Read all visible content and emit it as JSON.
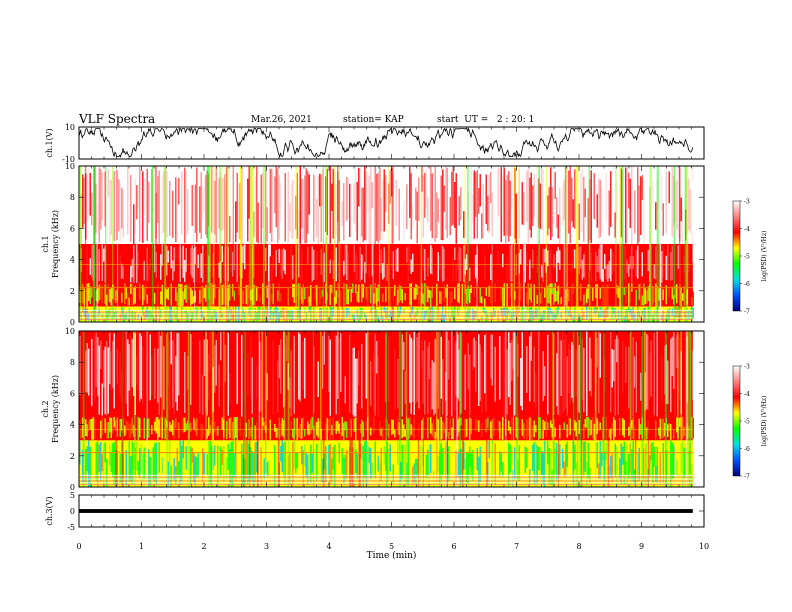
{
  "header": {
    "title": "VLF Spectra",
    "date": "Mar.26, 2021",
    "station": "station= KAP",
    "start": "start  UT =   2 : 20: 1"
  },
  "chart_data": {
    "type": "heatmap",
    "panels": [
      {
        "kind": "waveform",
        "ylabel": "ch.1(V)",
        "yticks": [
          "10",
          "-10"
        ],
        "ylim": [
          -10,
          10
        ]
      },
      {
        "kind": "spectrogram",
        "ylabel": "ch.1\nFrequency (kHz)",
        "yticks": [
          "0",
          "2",
          "4",
          "6",
          "8",
          "10"
        ],
        "ylim": [
          0,
          10
        ],
        "bands": [
          {
            "from": 0,
            "to": 1.0,
            "level": "low"
          },
          {
            "from": 1.0,
            "to": 2.5,
            "level": "mid"
          },
          {
            "from": 2.5,
            "to": 5.0,
            "level": "high"
          },
          {
            "from": 5.0,
            "to": 10.0,
            "level": "highest"
          }
        ]
      },
      {
        "kind": "spectrogram",
        "ylabel": "ch.2\nFrequency (kHz)",
        "yticks": [
          "0",
          "2",
          "4",
          "6",
          "8",
          "10"
        ],
        "ylim": [
          0,
          10
        ],
        "bands": [
          {
            "from": 0,
            "to": 3.0,
            "level": "low"
          },
          {
            "from": 3.0,
            "to": 4.5,
            "level": "mid"
          },
          {
            "from": 4.5,
            "to": 10.0,
            "level": "high"
          }
        ]
      },
      {
        "kind": "flat",
        "ylabel": "ch.3(V)",
        "yticks": [
          "5",
          "0",
          "-5"
        ],
        "ylim": [
          -5,
          5
        ]
      }
    ],
    "xaxis": {
      "label": "Time (min)",
      "ticks": [
        "0",
        "1",
        "2",
        "3",
        "4",
        "5",
        "6",
        "7",
        "8",
        "9",
        "10"
      ],
      "xlim": [
        0,
        10
      ],
      "data_end": 9.82
    },
    "colorbar": {
      "label": "log(PSD) (V²/Hz)",
      "ticks": [
        "-3",
        "-4",
        "-5",
        "-6",
        "-7"
      ],
      "range": [
        -7,
        -3
      ],
      "colors": [
        "#00007a",
        "#0050ff",
        "#00e0e0",
        "#00ff00",
        "#ffff00",
        "#ff0000",
        "#ff8080",
        "#ffffff"
      ]
    }
  }
}
